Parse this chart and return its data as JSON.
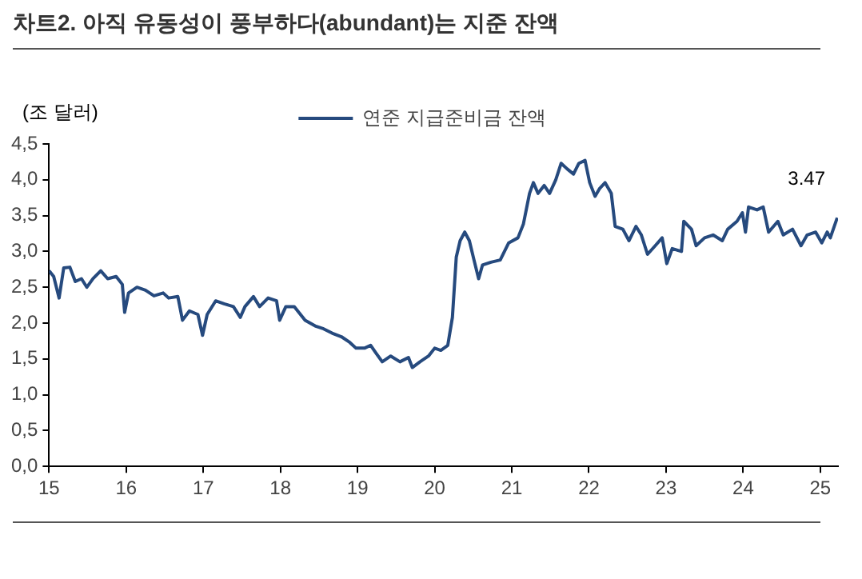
{
  "chart_data": {
    "type": "line",
    "title": "차트2. 아직 유동성이 풍부하다(abundant)는 지준 잔액",
    "ylabel": "(조 달러)",
    "legend": "top",
    "grid": false,
    "marker": "none",
    "line_style": "solid",
    "xlim": [
      2015,
      2025.23
    ],
    "xticks": [
      {
        "value": 2015,
        "label": "15"
      },
      {
        "value": 2016,
        "label": "16"
      },
      {
        "value": 2017,
        "label": "17"
      },
      {
        "value": 2018,
        "label": "18"
      },
      {
        "value": 2019,
        "label": "19"
      },
      {
        "value": 2020,
        "label": "20"
      },
      {
        "value": 2021,
        "label": "21"
      },
      {
        "value": 2022,
        "label": "22"
      },
      {
        "value": 2023,
        "label": "23"
      },
      {
        "value": 2024,
        "label": "24"
      },
      {
        "value": 2025,
        "label": "25"
      }
    ],
    "ylim": [
      0,
      4.5
    ],
    "yticks": [
      {
        "value": 0,
        "label": "0,0"
      },
      {
        "value": 0.5,
        "label": "0,5"
      },
      {
        "value": 1,
        "label": "1,0"
      },
      {
        "value": 1.5,
        "label": "1,5"
      },
      {
        "value": 2,
        "label": "2,0"
      },
      {
        "value": 2.5,
        "label": "2,5"
      },
      {
        "value": 3,
        "label": "3,0"
      },
      {
        "value": 3.5,
        "label": "3,5"
      },
      {
        "value": 4,
        "label": "4,0"
      },
      {
        "value": 4.5,
        "label": "4,5"
      }
    ],
    "x": [
      2015,
      2015.06,
      2015.13,
      2015.19,
      2015.27,
      2015.34,
      2015.42,
      2015.49,
      2015.57,
      2015.67,
      2015.76,
      2015.87,
      2015.95,
      2015.98,
      2016.03,
      2016.14,
      2016.25,
      2016.36,
      2016.48,
      2016.55,
      2016.67,
      2016.73,
      2016.82,
      2016.93,
      2016.99,
      2017.05,
      2017.16,
      2017.27,
      2017.39,
      2017.48,
      2017.54,
      2017.65,
      2017.73,
      2017.84,
      2017.95,
      2017.99,
      2018.07,
      2018.18,
      2018.32,
      2018.45,
      2018.56,
      2018.67,
      2018.79,
      2018.9,
      2018.98,
      2019.09,
      2019.17,
      2019.24,
      2019.32,
      2019.43,
      2019.55,
      2019.66,
      2019.71,
      2019.81,
      2019.92,
      2020,
      2020.08,
      2020.17,
      2020.23,
      2020.28,
      2020.33,
      2020.39,
      2020.45,
      2020.51,
      2020.57,
      2020.62,
      2020.73,
      2020.85,
      2020.96,
      2021.08,
      2021.15,
      2021.23,
      2021.28,
      2021.34,
      2021.42,
      2021.49,
      2021.57,
      2021.64,
      2021.72,
      2021.8,
      2021.87,
      2021.95,
      2022.01,
      2022.08,
      2022.14,
      2022.21,
      2022.29,
      2022.34,
      2022.44,
      2022.52,
      2022.61,
      2022.68,
      2022.76,
      2022.86,
      2022.95,
      2023.01,
      2023.08,
      2023.2,
      2023.23,
      2023.33,
      2023.39,
      2023.5,
      2023.61,
      2023.73,
      2023.8,
      2023.92,
      2023.99,
      2024.03,
      2024.07,
      2024.18,
      2024.26,
      2024.33,
      2024.45,
      2024.52,
      2024.64,
      2024.75,
      2024.83,
      2024.94,
      2025.02,
      2025.09,
      2025.13,
      2025.22
    ],
    "series": [
      {
        "name": "연준 지급준비금 잔액",
        "color": "#264a7e",
        "values": [
          2.73,
          2.65,
          2.35,
          2.77,
          2.78,
          2.58,
          2.62,
          2.5,
          2.62,
          2.73,
          2.62,
          2.65,
          2.54,
          2.15,
          2.42,
          2.5,
          2.46,
          2.38,
          2.42,
          2.35,
          2.37,
          2.04,
          2.17,
          2.12,
          1.83,
          2.12,
          2.31,
          2.27,
          2.23,
          2.08,
          2.23,
          2.37,
          2.23,
          2.35,
          2.31,
          2.04,
          2.23,
          2.23,
          2.04,
          1.96,
          1.92,
          1.86,
          1.81,
          1.73,
          1.65,
          1.65,
          1.69,
          1.58,
          1.46,
          1.54,
          1.46,
          1.52,
          1.38,
          1.46,
          1.54,
          1.65,
          1.62,
          1.69,
          2.08,
          2.92,
          3.15,
          3.27,
          3.15,
          2.88,
          2.62,
          2.81,
          2.85,
          2.88,
          3.12,
          3.19,
          3.38,
          3.81,
          3.96,
          3.81,
          3.92,
          3.81,
          4.0,
          4.23,
          4.15,
          4.08,
          4.23,
          4.27,
          3.96,
          3.77,
          3.88,
          3.96,
          3.81,
          3.35,
          3.31,
          3.15,
          3.35,
          3.23,
          2.96,
          3.08,
          3.19,
          2.83,
          3.04,
          3.0,
          3.42,
          3.31,
          3.08,
          3.19,
          3.23,
          3.15,
          3.31,
          3.42,
          3.54,
          3.27,
          3.62,
          3.58,
          3.62,
          3.27,
          3.42,
          3.23,
          3.31,
          3.08,
          3.23,
          3.27,
          3.12,
          3.27,
          3.19,
          3.47
        ]
      }
    ],
    "annotations": [
      "3.47"
    ]
  }
}
